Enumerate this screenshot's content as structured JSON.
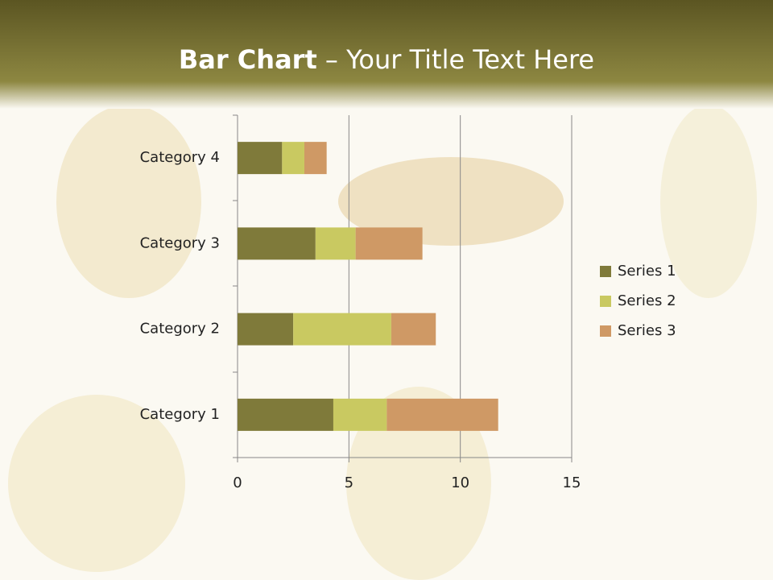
{
  "chart_data": {
    "type": "bar",
    "orientation": "horizontal",
    "stacked": true,
    "title_bold": "Bar Chart",
    "title_rest": "– Your Title Text Here",
    "categories": [
      "Category 1",
      "Category 2",
      "Category 3",
      "Category 4"
    ],
    "series": [
      {
        "name": "Series 1",
        "color": "#7f7a3a",
        "values": [
          4.3,
          2.5,
          3.5,
          2
        ]
      },
      {
        "name": "Series 2",
        "color": "#c9c961",
        "values": [
          2.4,
          4.4,
          1.8,
          1
        ]
      },
      {
        "name": "Series 3",
        "color": "#cf9965",
        "values": [
          5,
          2,
          3,
          1
        ]
      }
    ],
    "xlim": [
      0,
      15
    ],
    "xticks": [
      0,
      5,
      10,
      15
    ],
    "grid": true,
    "legend": "right"
  }
}
